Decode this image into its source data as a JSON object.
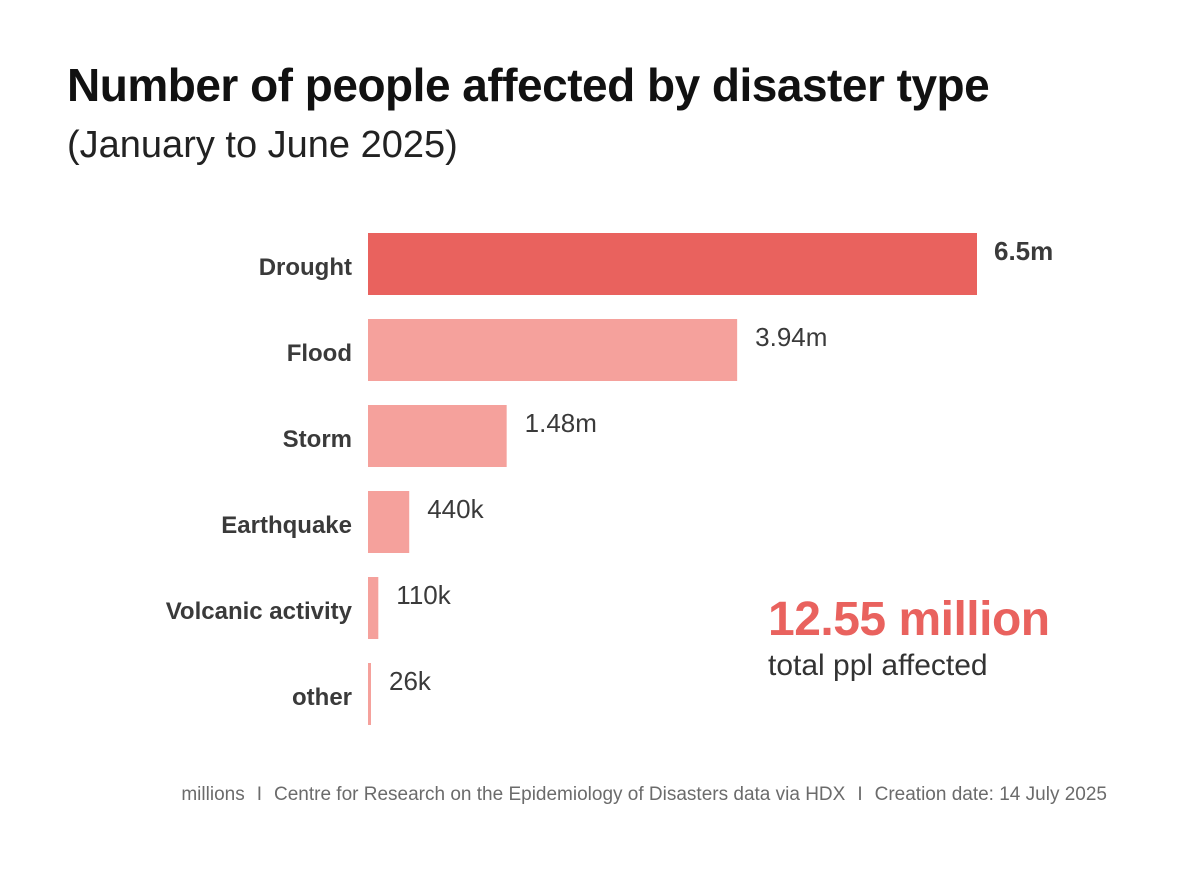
{
  "header": {
    "title": "Number of people affected by disaster type",
    "subtitle": "(January to June 2025)"
  },
  "colors": {
    "highlight": "#e9625e",
    "bar": "#f5a19c"
  },
  "chart_data": {
    "type": "bar",
    "orientation": "horizontal",
    "title": "Number of people affected by disaster type",
    "subtitle": "(January to June 2025)",
    "xlabel": "",
    "ylabel": "",
    "unit": "millions",
    "categories": [
      "Drought",
      "Flood",
      "Storm",
      "Earthquake",
      "Volcanic activity",
      "other"
    ],
    "values": [
      6.5,
      3.94,
      1.48,
      0.44,
      0.11,
      0.026
    ],
    "value_labels": [
      "6.5m",
      "3.94m",
      "1.48m",
      "440k",
      "110k",
      "26k"
    ],
    "highlight_index": 0,
    "xlim": [
      0,
      6.5
    ],
    "grid": false,
    "legend": "none"
  },
  "summary": {
    "total_value": "12.55 million",
    "total_label": "total ppl affected"
  },
  "footer": {
    "units": "millions",
    "source": "Centre for Research on the Epidemiology of Disasters data via HDX",
    "created": "Creation date: 14 July 2025",
    "separator": "I"
  }
}
